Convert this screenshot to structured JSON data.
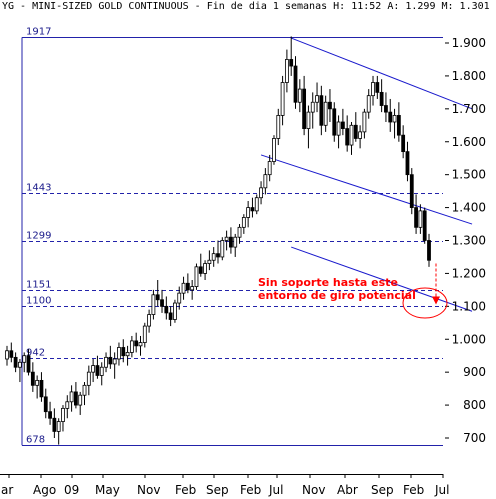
{
  "chart_data": {
    "type": "candlestick",
    "title": "YG - MINI-SIZED GOLD CONTINUOUS - Fin de dia 1 semanas H: 11:52 A: 1.299 M: 1.301",
    "ylim": [
      650,
      1950
    ],
    "y_ticks": [
      {
        "value": 1900,
        "label": "1.900"
      },
      {
        "value": 1800,
        "label": "1.800"
      },
      {
        "value": 1700,
        "label": "1.700"
      },
      {
        "value": 1600,
        "label": "1.600"
      },
      {
        "value": 1500,
        "label": "1.500"
      },
      {
        "value": 1400,
        "label": "1.400"
      },
      {
        "value": 1300,
        "label": "1.300"
      },
      {
        "value": 1200,
        "label": "1.200"
      },
      {
        "value": 1100,
        "label": "1.100"
      },
      {
        "value": 1000,
        "label": "1.000"
      },
      {
        "value": 900,
        "label": "900"
      },
      {
        "value": 800,
        "label": "800"
      },
      {
        "value": 700,
        "label": "700"
      }
    ],
    "x_labels": [
      "ar",
      "Ago",
      "09",
      "May",
      "Nov",
      "Feb",
      "Sep",
      "Feb",
      "Jul",
      "Nov",
      "Abr",
      "Sep",
      "Feb",
      "Jul"
    ],
    "levels": [
      {
        "label": "1917",
        "value": 1917,
        "style": "solid"
      },
      {
        "label": "1443",
        "value": 1443,
        "style": "dashed"
      },
      {
        "label": "1299",
        "value": 1299,
        "style": "dashed"
      },
      {
        "label": "1151",
        "value": 1151,
        "style": "dashed"
      },
      {
        "label": "1100",
        "value": 1100,
        "style": "dashed"
      },
      {
        "label": "942",
        "value": 942,
        "style": "dashed"
      },
      {
        "label": "678",
        "value": 678,
        "style": "solid"
      }
    ],
    "series": [
      {
        "values": [
          [
            940,
            980,
            920,
            965
          ],
          [
            965,
            990,
            930,
            945
          ],
          [
            945,
            960,
            900,
            915
          ],
          [
            915,
            940,
            870,
            930
          ],
          [
            930,
            960,
            900,
            950
          ],
          [
            950,
            970,
            890,
            900
          ],
          [
            900,
            930,
            840,
            860
          ],
          [
            860,
            890,
            820,
            875
          ],
          [
            875,
            900,
            810,
            825
          ],
          [
            825,
            850,
            760,
            780
          ],
          [
            780,
            810,
            740,
            760
          ],
          [
            760,
            790,
            700,
            720
          ],
          [
            720,
            760,
            680,
            750
          ],
          [
            750,
            800,
            720,
            790
          ],
          [
            790,
            830,
            760,
            810
          ],
          [
            810,
            860,
            780,
            840
          ],
          [
            840,
            870,
            790,
            800
          ],
          [
            800,
            840,
            770,
            830
          ],
          [
            830,
            870,
            800,
            860
          ],
          [
            860,
            920,
            830,
            900
          ],
          [
            900,
            940,
            870,
            920
          ],
          [
            920,
            950,
            880,
            890
          ],
          [
            890,
            930,
            860,
            915
          ],
          [
            915,
            960,
            900,
            945
          ],
          [
            945,
            980,
            910,
            925
          ],
          [
            925,
            960,
            880,
            940
          ],
          [
            940,
            990,
            920,
            975
          ],
          [
            975,
            1000,
            930,
            950
          ],
          [
            950,
            980,
            920,
            960
          ],
          [
            960,
            1010,
            945,
            995
          ],
          [
            995,
            1020,
            960,
            980
          ],
          [
            980,
            1010,
            950,
            990
          ],
          [
            990,
            1050,
            975,
            1040
          ],
          [
            1040,
            1090,
            1020,
            1075
          ],
          [
            1075,
            1150,
            1060,
            1135
          ],
          [
            1135,
            1180,
            1100,
            1120
          ],
          [
            1120,
            1150,
            1080,
            1100
          ],
          [
            1100,
            1130,
            1060,
            1080
          ],
          [
            1080,
            1100,
            1040,
            1060
          ],
          [
            1060,
            1120,
            1050,
            1110
          ],
          [
            1110,
            1160,
            1090,
            1140
          ],
          [
            1140,
            1190,
            1120,
            1170
          ],
          [
            1170,
            1200,
            1140,
            1150
          ],
          [
            1150,
            1180,
            1120,
            1160
          ],
          [
            1160,
            1230,
            1150,
            1220
          ],
          [
            1220,
            1260,
            1190,
            1200
          ],
          [
            1200,
            1240,
            1180,
            1230
          ],
          [
            1230,
            1270,
            1210,
            1240
          ],
          [
            1240,
            1280,
            1220,
            1260
          ],
          [
            1260,
            1300,
            1230,
            1250
          ],
          [
            1250,
            1310,
            1240,
            1300
          ],
          [
            1300,
            1330,
            1270,
            1310
          ],
          [
            1310,
            1340,
            1260,
            1280
          ],
          [
            1280,
            1320,
            1250,
            1310
          ],
          [
            1310,
            1350,
            1290,
            1340
          ],
          [
            1340,
            1380,
            1320,
            1370
          ],
          [
            1370,
            1420,
            1340,
            1400
          ],
          [
            1400,
            1430,
            1370,
            1390
          ],
          [
            1390,
            1440,
            1380,
            1430
          ],
          [
            1430,
            1480,
            1410,
            1460
          ],
          [
            1460,
            1520,
            1440,
            1500
          ],
          [
            1500,
            1560,
            1480,
            1540
          ],
          [
            1540,
            1620,
            1530,
            1610
          ],
          [
            1610,
            1700,
            1590,
            1680
          ],
          [
            1680,
            1800,
            1650,
            1780
          ],
          [
            1780,
            1880,
            1750,
            1850
          ],
          [
            1850,
            1920,
            1800,
            1830
          ],
          [
            1830,
            1860,
            1700,
            1720
          ],
          [
            1720,
            1790,
            1690,
            1760
          ],
          [
            1760,
            1800,
            1620,
            1640
          ],
          [
            1640,
            1710,
            1580,
            1690
          ],
          [
            1690,
            1750,
            1640,
            1720
          ],
          [
            1720,
            1780,
            1690,
            1740
          ],
          [
            1740,
            1770,
            1620,
            1650
          ],
          [
            1650,
            1740,
            1630,
            1720
          ],
          [
            1720,
            1760,
            1660,
            1700
          ],
          [
            1700,
            1720,
            1600,
            1620
          ],
          [
            1620,
            1680,
            1580,
            1660
          ],
          [
            1660,
            1700,
            1620,
            1640
          ],
          [
            1640,
            1680,
            1570,
            1590
          ],
          [
            1590,
            1660,
            1560,
            1650
          ],
          [
            1650,
            1690,
            1600,
            1610
          ],
          [
            1610,
            1650,
            1580,
            1630
          ],
          [
            1630,
            1700,
            1610,
            1690
          ],
          [
            1690,
            1760,
            1670,
            1740
          ],
          [
            1740,
            1800,
            1710,
            1780
          ],
          [
            1780,
            1800,
            1730,
            1750
          ],
          [
            1750,
            1790,
            1690,
            1710
          ],
          [
            1710,
            1750,
            1660,
            1690
          ],
          [
            1690,
            1730,
            1630,
            1660
          ],
          [
            1660,
            1700,
            1610,
            1680
          ],
          [
            1680,
            1720,
            1600,
            1620
          ],
          [
            1620,
            1650,
            1550,
            1570
          ],
          [
            1570,
            1600,
            1480,
            1500
          ],
          [
            1500,
            1520,
            1380,
            1400
          ],
          [
            1400,
            1440,
            1320,
            1340
          ],
          [
            1340,
            1410,
            1320,
            1390
          ],
          [
            1390,
            1400,
            1290,
            1300
          ],
          [
            1300,
            1320,
            1220,
            1240
          ]
        ]
      }
    ],
    "trendlines": [
      {
        "from": {
          "i": 66,
          "v": 1915
        },
        "to": {
          "i": 108,
          "v": 1700
        }
      },
      {
        "from": {
          "i": 59,
          "v": 1560
        },
        "to": {
          "i": 108,
          "v": 1350
        }
      },
      {
        "from": {
          "i": 66,
          "v": 1280
        },
        "to": {
          "i": 108,
          "v": 1085
        }
      }
    ],
    "annotation": {
      "lines": [
        "Sin soporte hasta este",
        "entorno de giro potencial"
      ],
      "color": "#ff0000"
    },
    "colors": {
      "level": "#2222aa",
      "trendline": "#1a1acc",
      "annotation": "#ff0000",
      "candles": "#000000"
    }
  }
}
